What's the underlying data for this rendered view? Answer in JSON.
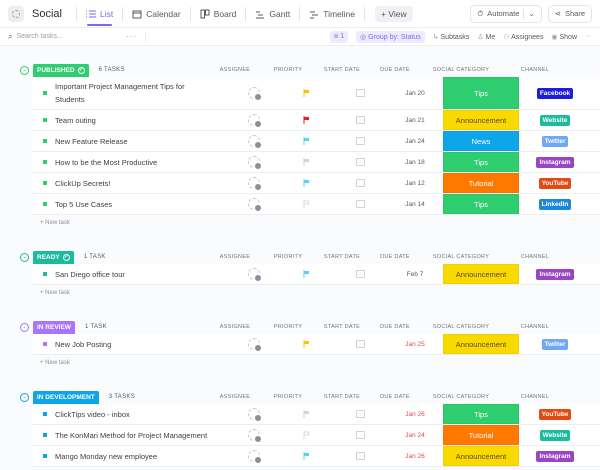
{
  "header": {
    "space_name": "Social",
    "tabs": [
      {
        "label": "List",
        "icon": "list-icon",
        "active": true
      },
      {
        "label": "Calendar",
        "icon": "calendar-icon",
        "active": false
      },
      {
        "label": "Board",
        "icon": "board-icon",
        "active": false
      },
      {
        "label": "Gantt",
        "icon": "gantt-icon",
        "active": false
      },
      {
        "label": "Timeline",
        "icon": "timeline-icon",
        "active": false
      }
    ],
    "add_view_label": "+ View",
    "automate_label": "Automate",
    "share_label": "Share"
  },
  "toolbar": {
    "search_placeholder": "Search tasks...",
    "filter_count": "1",
    "group_by_label": "Group by: Status",
    "subtasks_label": "Subtasks",
    "me_label": "Me",
    "assignees_label": "Assignees",
    "show_label": "Show"
  },
  "columns": {
    "assignee": "ASSIGNEE",
    "priority": "PRIORITY",
    "start_date": "START DATE",
    "due_date": "DUE DATE",
    "social_category": "SOCIAL CATEGORY",
    "channel": "CHANNEL"
  },
  "new_task_label": "+ New task",
  "colors": {
    "accent": "#7b68ee",
    "published": "#2ecd6f",
    "ready": "#1bbc9c",
    "in_review": "#a875ff",
    "in_development": "#0ea5e9",
    "cat_tips": "#2ecd6f",
    "cat_announcement": "#f9d900",
    "cat_news": "#0ea5e9",
    "cat_tutorial": "#ff7800",
    "ch_facebook": "#1d1ddb",
    "ch_website": "#1bbc9c",
    "ch_twitter": "#6fa8f7",
    "ch_instagram": "#9b45c4",
    "ch_youtube": "#e34a12",
    "ch_linkedin": "#1e88d8",
    "flag_yellow": "#f8c400",
    "flag_red": "#ee1e1e",
    "flag_cyan": "#5ccff5",
    "flag_gray": "#d1d5db"
  },
  "groups": [
    {
      "status": "PUBLISHED",
      "count_label": "6 TASKS",
      "tasks": [
        {
          "name": "Important Project Management Tips for Students",
          "priority": "yellow",
          "due": "Jan 20",
          "due_late": false,
          "category": "Tips",
          "channel": "Facebook"
        },
        {
          "name": "Team outing",
          "priority": "red",
          "due": "Jan 21",
          "due_late": false,
          "category": "Announcement",
          "channel": "Website"
        },
        {
          "name": "New Feature Release",
          "priority": "cyan",
          "due": "Jan 24",
          "due_late": false,
          "category": "News",
          "channel": "Twitter"
        },
        {
          "name": "How to be the Most Productive",
          "priority": "gray",
          "due": "Jan 18",
          "due_late": false,
          "category": "Tips",
          "channel": "Instagram"
        },
        {
          "name": "ClickUp Secrets!",
          "priority": "cyan",
          "due": "Jan 12",
          "due_late": false,
          "category": "Tutorial",
          "channel": "YouTube"
        },
        {
          "name": "Top 5 Use Cases",
          "priority": "none",
          "due": "Jan 14",
          "due_late": false,
          "category": "Tips",
          "channel": "LinkedIn"
        }
      ]
    },
    {
      "status": "READY",
      "count_label": "1 TASK",
      "tasks": [
        {
          "name": "San Diego office tour",
          "priority": "cyan",
          "due": "Feb 7",
          "due_late": false,
          "category": "Announcement",
          "channel": "Instagram"
        }
      ]
    },
    {
      "status": "IN REVIEW",
      "count_label": "1 TASK",
      "tasks": [
        {
          "name": "New Job Posting",
          "priority": "yellow",
          "due": "Jan 25",
          "due_late": true,
          "category": "Announcement",
          "channel": "Twitter"
        }
      ]
    },
    {
      "status": "IN DEVELOPMENT",
      "count_label": "3 TASKS",
      "tasks": [
        {
          "name": "ClickTips video - inbox",
          "priority": "gray",
          "due": "Jan 26",
          "due_late": true,
          "category": "Tips",
          "channel": "YouTube"
        },
        {
          "name": "The KonMari Method for Project Management",
          "priority": "none",
          "due": "Jan 24",
          "due_late": true,
          "category": "Tutorial",
          "channel": "Website"
        },
        {
          "name": "Mango Monday new employee",
          "priority": "cyan",
          "due": "Jan 26",
          "due_late": true,
          "category": "Announcement",
          "channel": "Instagram"
        }
      ]
    }
  ]
}
